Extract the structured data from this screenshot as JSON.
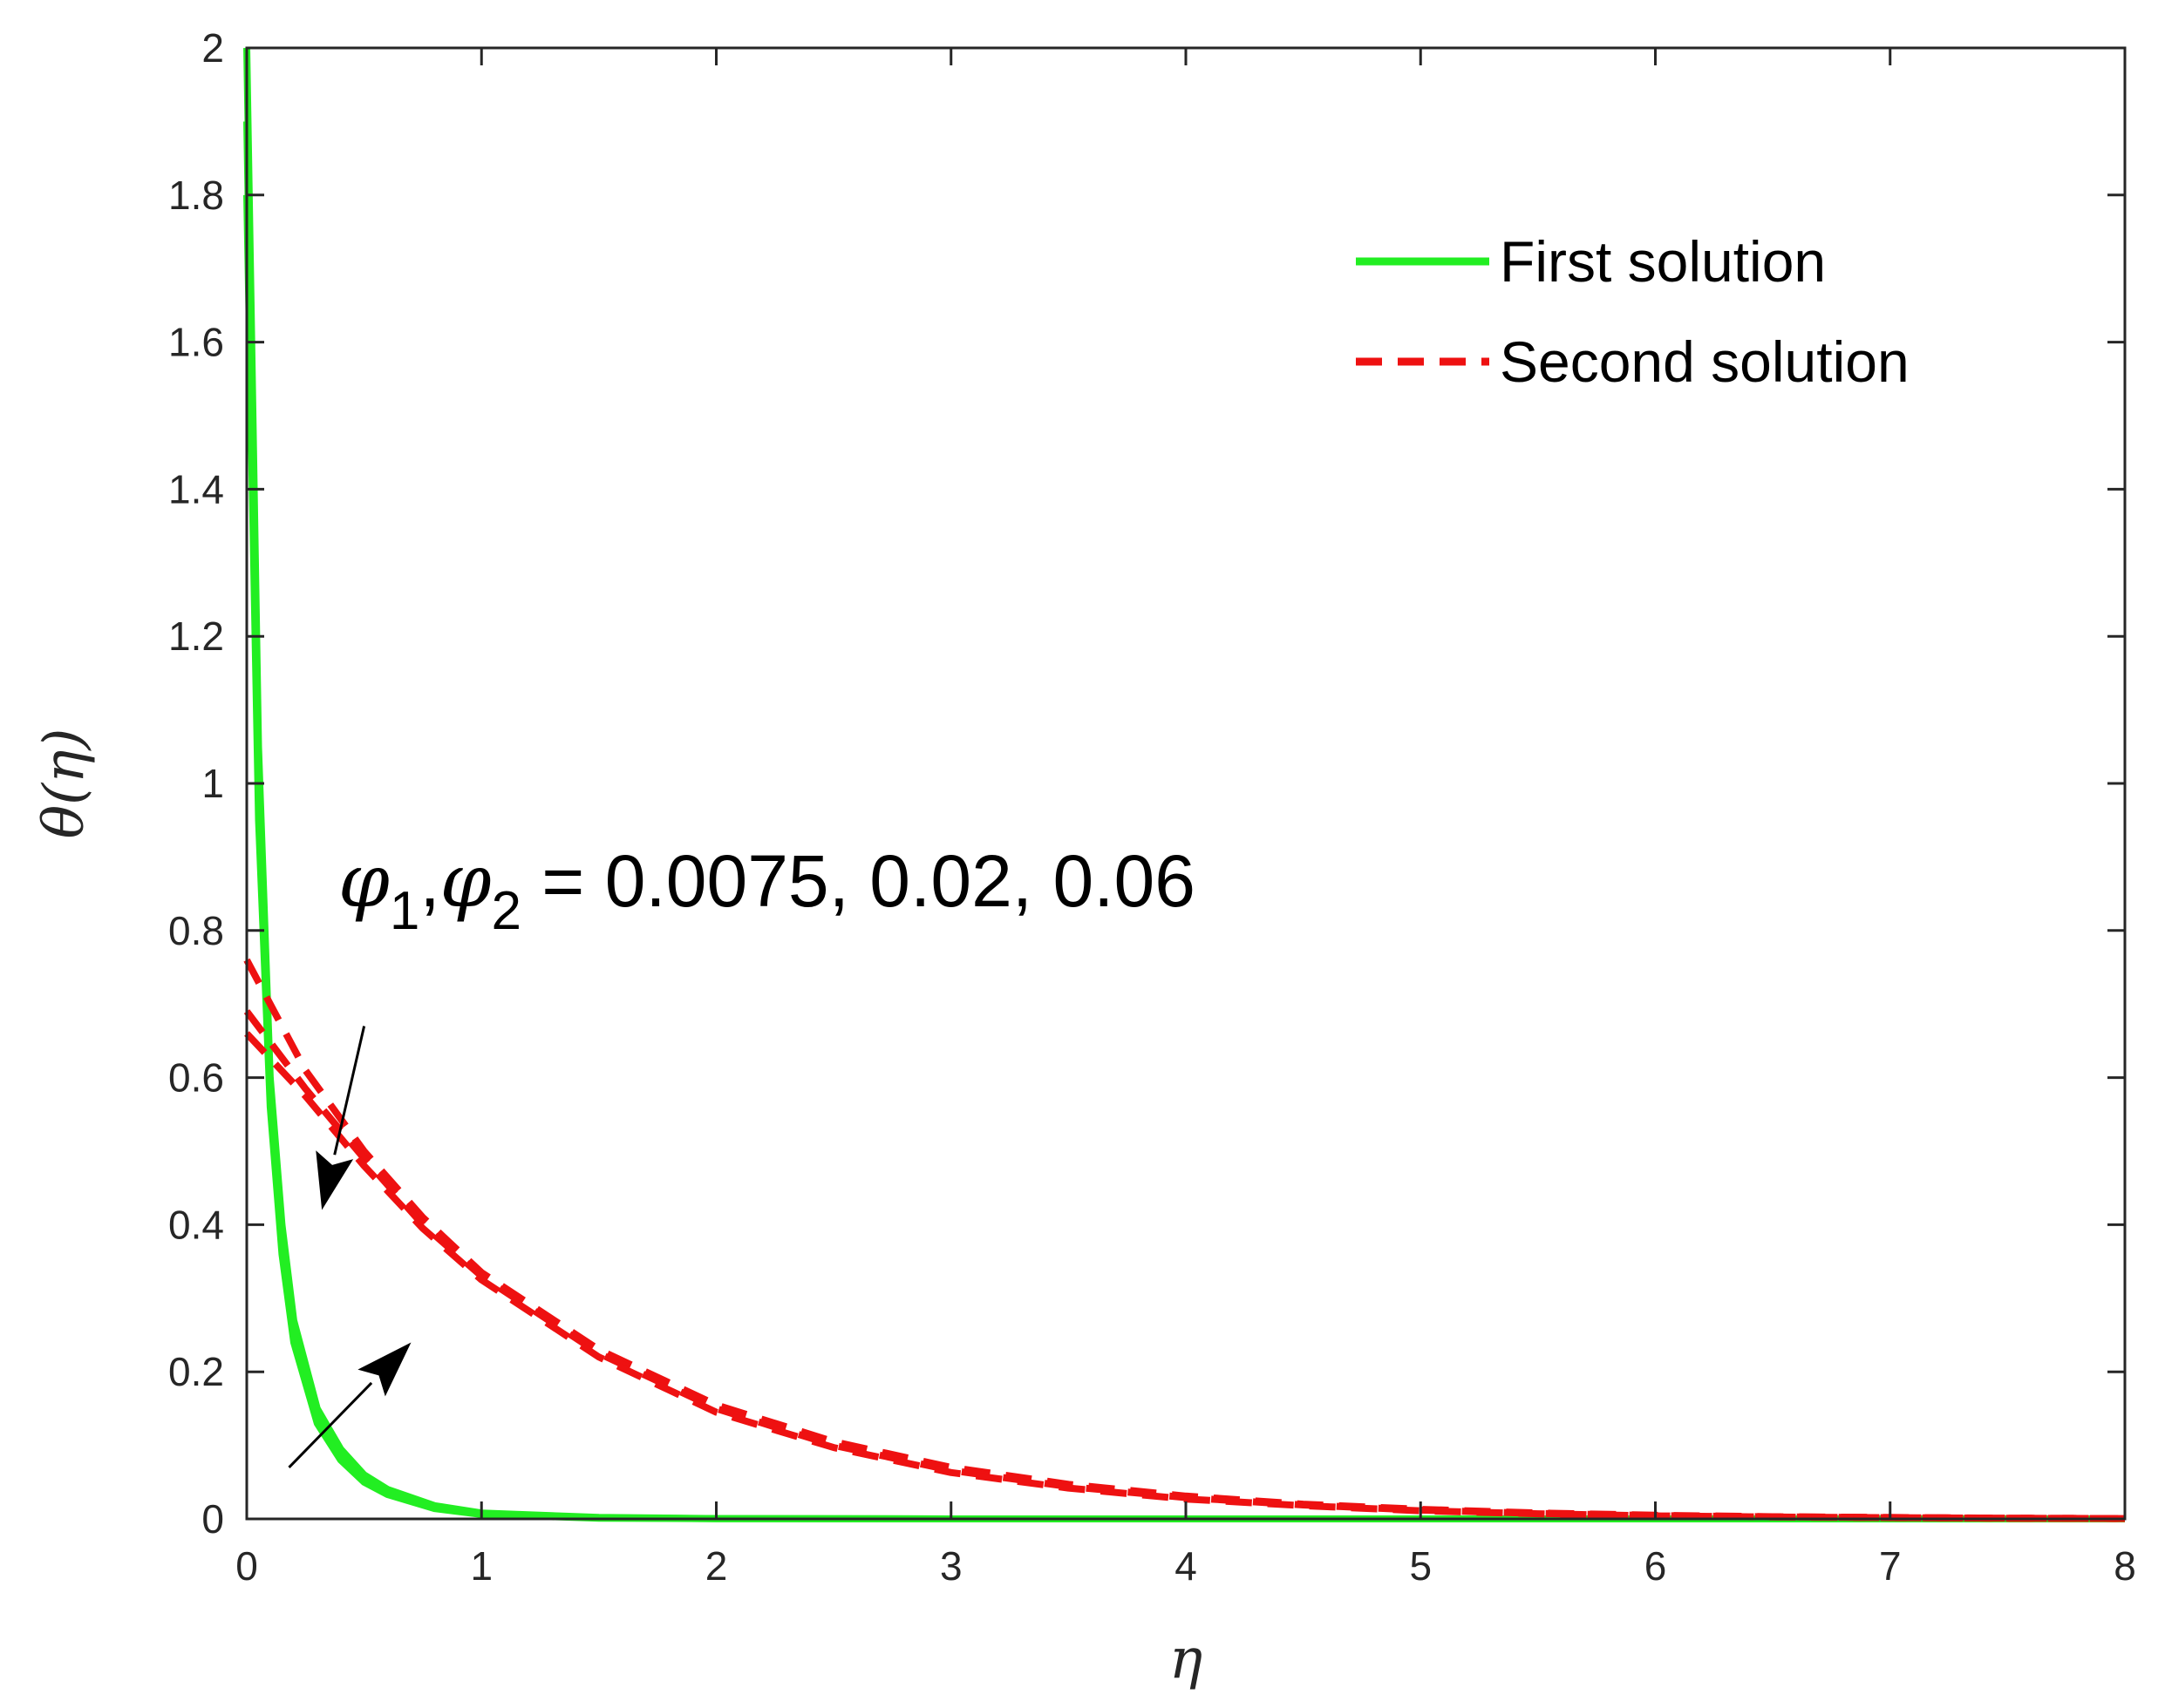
{
  "chart_data": {
    "type": "line",
    "title": "",
    "xlabel": "η",
    "ylabel": "θ(η)",
    "xlim": [
      0,
      8
    ],
    "ylim": [
      0,
      2
    ],
    "xticks": [
      "0",
      "1",
      "2",
      "3",
      "4",
      "5",
      "6",
      "7",
      "8"
    ],
    "yticks": [
      "0",
      "0.2",
      "0.4",
      "0.6",
      "0.8",
      "1",
      "1.2",
      "1.4",
      "1.6",
      "1.8",
      "2"
    ],
    "grid": false,
    "legend": {
      "position": "top-right",
      "entries": [
        "First solution",
        "Second solution"
      ]
    },
    "annotation": {
      "symbol": "φ",
      "sub1": "1",
      "sub2": "2",
      "values": " = 0.0075, 0.02, 0.06"
    },
    "colors": {
      "first": "#22ee22",
      "second": "#ee1111",
      "axis": "#262626"
    },
    "series": [
      {
        "name": "First solution",
        "group": "first",
        "style": "solid",
        "x": [
          0,
          0.05,
          0.1,
          0.15,
          0.2,
          0.3,
          0.4,
          0.5,
          0.6,
          0.8,
          1.0,
          1.5,
          2,
          3,
          4,
          5,
          6,
          7,
          8
        ],
        "y": [
          2.0,
          1.05,
          0.6,
          0.4,
          0.27,
          0.15,
          0.095,
          0.06,
          0.04,
          0.018,
          0.008,
          0.002,
          0.0005,
          0,
          0,
          0,
          0,
          0,
          0
        ]
      },
      {
        "name": "First solution",
        "group": "first",
        "style": "solid",
        "x": [
          0,
          0.05,
          0.1,
          0.15,
          0.2,
          0.3,
          0.4,
          0.5,
          0.6,
          0.8,
          1.0,
          1.5,
          2,
          3,
          4,
          5,
          6,
          7,
          8
        ],
        "y": [
          1.9,
          1.0,
          0.58,
          0.38,
          0.26,
          0.14,
          0.088,
          0.055,
          0.037,
          0.016,
          0.007,
          0.0015,
          0.0004,
          0,
          0,
          0,
          0,
          0,
          0
        ]
      },
      {
        "name": "First solution",
        "group": "first",
        "style": "solid",
        "x": [
          0,
          0.05,
          0.1,
          0.15,
          0.2,
          0.3,
          0.4,
          0.5,
          0.6,
          0.8,
          1.0,
          1.5,
          2,
          3,
          4,
          5,
          6,
          7,
          8
        ],
        "y": [
          1.8,
          0.95,
          0.56,
          0.36,
          0.24,
          0.13,
          0.08,
          0.05,
          0.033,
          0.014,
          0.006,
          0.001,
          0.0003,
          0,
          0,
          0,
          0,
          0,
          0
        ]
      },
      {
        "name": "Second solution",
        "group": "second",
        "style": "dashed",
        "x": [
          0,
          0.25,
          0.5,
          0.75,
          1.0,
          1.5,
          2.0,
          2.5,
          3.0,
          3.5,
          4.0,
          4.5,
          5.0,
          5.5,
          6.0,
          6.5,
          7.0,
          7.5,
          8.0
        ],
        "y": [
          0.76,
          0.61,
          0.5,
          0.41,
          0.335,
          0.23,
          0.155,
          0.105,
          0.07,
          0.047,
          0.031,
          0.02,
          0.013,
          0.008,
          0.005,
          0.003,
          0.002,
          0.001,
          0.0005
        ]
      },
      {
        "name": "Second solution",
        "group": "second",
        "style": "dashed",
        "x": [
          0,
          0.25,
          0.5,
          0.75,
          1.0,
          1.5,
          2.0,
          2.5,
          3.0,
          3.5,
          4.0,
          4.5,
          5.0,
          5.5,
          6.0,
          6.5,
          7.0,
          7.5,
          8.0
        ],
        "y": [
          0.69,
          0.585,
          0.49,
          0.4,
          0.33,
          0.225,
          0.15,
          0.1,
          0.066,
          0.044,
          0.029,
          0.019,
          0.012,
          0.0075,
          0.0045,
          0.0028,
          0.0017,
          0.001,
          0.0005
        ]
      },
      {
        "name": "Second solution",
        "group": "second",
        "style": "dashed",
        "x": [
          0,
          0.25,
          0.5,
          0.75,
          1.0,
          1.5,
          2.0,
          2.5,
          3.0,
          3.5,
          4.0,
          4.5,
          5.0,
          5.5,
          6.0,
          6.5,
          7.0,
          7.5,
          8.0
        ],
        "y": [
          0.66,
          0.575,
          0.48,
          0.395,
          0.325,
          0.22,
          0.145,
          0.097,
          0.063,
          0.042,
          0.027,
          0.018,
          0.011,
          0.007,
          0.0042,
          0.0026,
          0.0016,
          0.001,
          0.0005
        ]
      }
    ],
    "arrows": [
      {
        "name": "arrow-down",
        "from": [
          0.5,
          0.67
        ],
        "to": [
          0.32,
          0.42
        ]
      },
      {
        "name": "arrow-up",
        "from": [
          0.18,
          0.07
        ],
        "to": [
          0.7,
          0.24
        ]
      }
    ]
  }
}
